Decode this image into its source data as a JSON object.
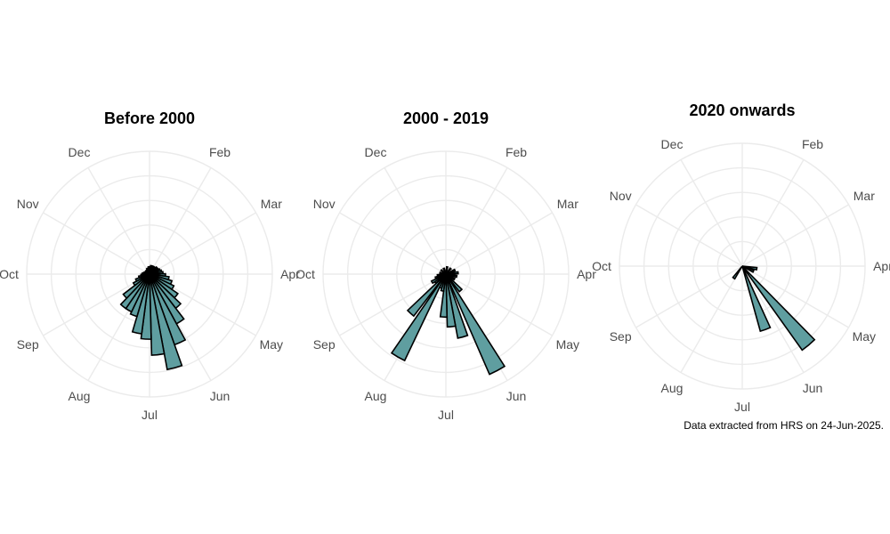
{
  "caption": "Data extracted from HRS on 24-Jun-2025.",
  "colors": {
    "bar_fill": "#5f9ea0",
    "bar_stroke": "#000000",
    "grid": "#ebebeb",
    "label": "#4d4d4d"
  },
  "chart_data": [
    {
      "type": "polar-bar",
      "title": "Before 2000",
      "axis_labels": [
        "Feb",
        "Mar",
        "Apr",
        "May",
        "Jun",
        "Jul",
        "Aug",
        "Sep",
        "Oct",
        "Nov",
        "Dec"
      ],
      "grid": true,
      "bars": [
        {
          "angle_deg": 84,
          "value": 0.11
        },
        {
          "angle_deg": 93,
          "value": 0.13
        },
        {
          "angle_deg": 102,
          "value": 0.16
        },
        {
          "angle_deg": 111,
          "value": 0.19
        },
        {
          "angle_deg": 120,
          "value": 0.22
        },
        {
          "angle_deg": 129,
          "value": 0.28
        },
        {
          "angle_deg": 138,
          "value": 0.35
        },
        {
          "angle_deg": 147,
          "value": 0.46
        },
        {
          "angle_deg": 156,
          "value": 0.61
        },
        {
          "angle_deg": 165,
          "value": 0.79
        },
        {
          "angle_deg": 174,
          "value": 0.66
        },
        {
          "angle_deg": 183,
          "value": 0.53
        },
        {
          "angle_deg": 192,
          "value": 0.49
        },
        {
          "angle_deg": 201,
          "value": 0.36
        },
        {
          "angle_deg": 210,
          "value": 0.34
        },
        {
          "angle_deg": 219,
          "value": 0.34
        },
        {
          "angle_deg": 228,
          "value": 0.27
        },
        {
          "angle_deg": 237,
          "value": 0.15
        },
        {
          "angle_deg": 246,
          "value": 0.12
        },
        {
          "angle_deg": 255,
          "value": 0.09
        },
        {
          "angle_deg": 264,
          "value": 0.07
        },
        {
          "angle_deg": 273,
          "value": 0.06
        },
        {
          "angle_deg": 282,
          "value": 0.05
        },
        {
          "angle_deg": 291,
          "value": 0.04
        },
        {
          "angle_deg": 300,
          "value": 0.04
        },
        {
          "angle_deg": 309,
          "value": 0.04
        },
        {
          "angle_deg": 318,
          "value": 0.04
        },
        {
          "angle_deg": 327,
          "value": 0.04
        },
        {
          "angle_deg": 336,
          "value": 0.05
        },
        {
          "angle_deg": 345,
          "value": 0.05
        },
        {
          "angle_deg": 354,
          "value": 0.06
        },
        {
          "angle_deg": 3,
          "value": 0.06
        },
        {
          "angle_deg": 12,
          "value": 0.07
        },
        {
          "angle_deg": 21,
          "value": 0.07
        },
        {
          "angle_deg": 30,
          "value": 0.07
        },
        {
          "angle_deg": 39,
          "value": 0.07
        },
        {
          "angle_deg": 48,
          "value": 0.08
        },
        {
          "angle_deg": 57,
          "value": 0.08
        },
        {
          "angle_deg": 66,
          "value": 0.09
        },
        {
          "angle_deg": 75,
          "value": 0.1
        }
      ]
    },
    {
      "type": "polar-bar",
      "title": "2000 - 2019",
      "axis_labels": [
        "Feb",
        "Mar",
        "Apr",
        "May",
        "Jun",
        "Jul",
        "Aug",
        "Sep",
        "Oct",
        "Nov",
        "Dec"
      ],
      "grid": true,
      "bars": [
        {
          "angle_deg": 84,
          "value": 0.1
        },
        {
          "angle_deg": 102,
          "value": 0.09
        },
        {
          "angle_deg": 120,
          "value": 0.08
        },
        {
          "angle_deg": 138,
          "value": 0.18
        },
        {
          "angle_deg": 152,
          "value": 0.89
        },
        {
          "angle_deg": 165,
          "value": 0.53
        },
        {
          "angle_deg": 174,
          "value": 0.43
        },
        {
          "angle_deg": 183,
          "value": 0.35
        },
        {
          "angle_deg": 192,
          "value": 0.14
        },
        {
          "angle_deg": 201,
          "value": 0.12
        },
        {
          "angle_deg": 210,
          "value": 0.78
        },
        {
          "angle_deg": 222,
          "value": 0.43
        },
        {
          "angle_deg": 232,
          "value": 0.11
        },
        {
          "angle_deg": 240,
          "value": 0.13
        },
        {
          "angle_deg": 250,
          "value": 0.09
        },
        {
          "angle_deg": 262,
          "value": 0.07
        },
        {
          "angle_deg": 282,
          "value": 0.05
        },
        {
          "angle_deg": 310,
          "value": 0.05
        },
        {
          "angle_deg": 340,
          "value": 0.05
        },
        {
          "angle_deg": 10,
          "value": 0.06
        },
        {
          "angle_deg": 40,
          "value": 0.06
        },
        {
          "angle_deg": 66,
          "value": 0.08
        }
      ]
    },
    {
      "type": "polar-bar",
      "title": "2020 onwards",
      "axis_labels": [
        "Feb",
        "Mar",
        "Apr",
        "May",
        "Jun",
        "Jul",
        "Aug",
        "Sep",
        "Oct",
        "Nov",
        "Dec"
      ],
      "grid": true,
      "bars": [
        {
          "angle_deg": 100,
          "value": 0.12
        },
        {
          "angle_deg": 115,
          "value": 0.1
        },
        {
          "angle_deg": 140,
          "value": 0.84
        },
        {
          "angle_deg": 160,
          "value": 0.55
        },
        {
          "angle_deg": 215,
          "value": 0.12
        }
      ]
    }
  ]
}
